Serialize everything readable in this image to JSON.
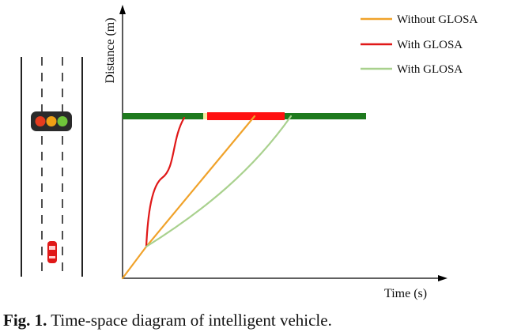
{
  "axes": {
    "ylabel": "Distance (m)",
    "xlabel": "Time (s)"
  },
  "legend": {
    "items": [
      {
        "label": "Without GLOSA",
        "color": "#f0a22a"
      },
      {
        "label": "With GLOSA",
        "color": "#e01818"
      },
      {
        "label": "With GLOSA",
        "color": "#a9d18e"
      }
    ]
  },
  "signal_bar_colors": {
    "green": "#1e7a1e",
    "yellow": "#f4e9a0",
    "red": "#ff1010"
  },
  "traffic_light_colors": [
    "#e53b1e",
    "#f0a015",
    "#6fc43a"
  ],
  "car_color": "#e01818",
  "caption": {
    "label": "Fig. 1.",
    "text": " Time-space diagram of intelligent vehicle."
  }
}
